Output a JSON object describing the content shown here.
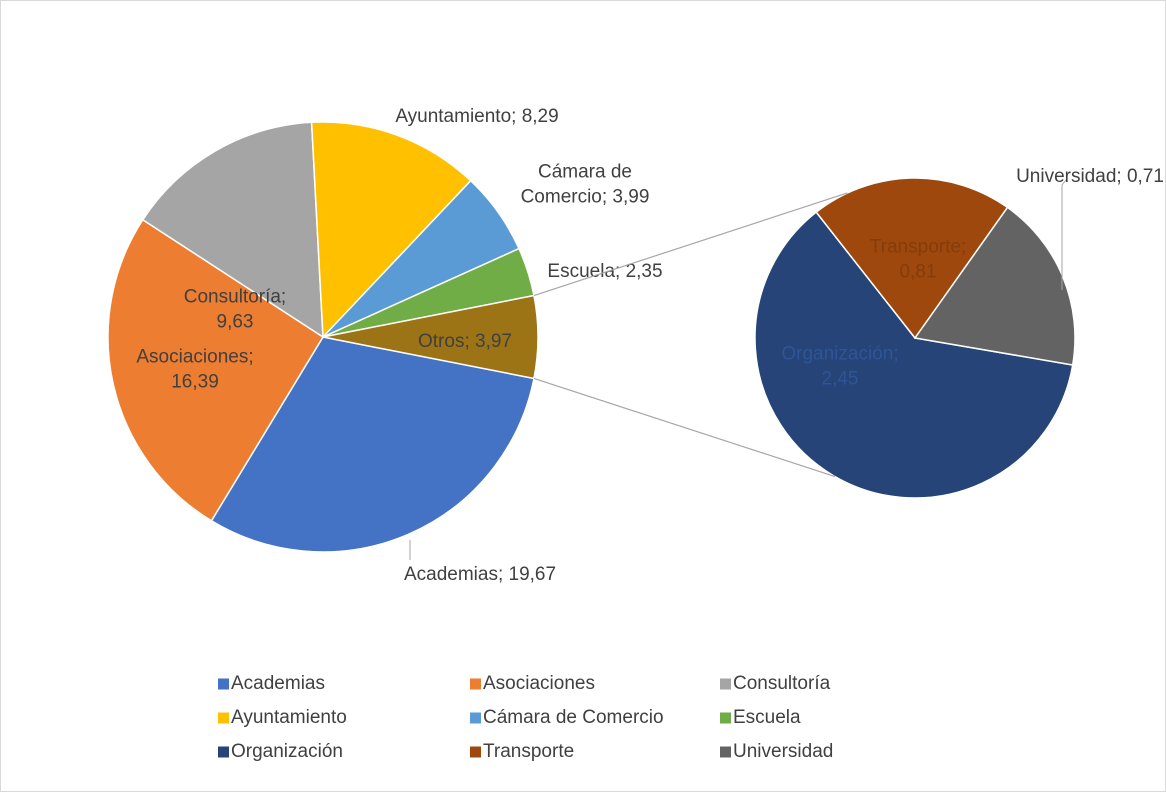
{
  "chart_data": {
    "type": "pie-of-pie",
    "categories": [
      "Academias",
      "Asociaciones",
      "Consultoría",
      "Ayuntamiento",
      "Cámara de Comercio",
      "Escuela",
      "Otros"
    ],
    "values": [
      19.67,
      16.39,
      9.63,
      8.29,
      3.99,
      2.35,
      3.97
    ],
    "value_labels": [
      "Academias; 19,67",
      "Asociaciones;\n16,39",
      "Consultoría;\n9,63",
      "Ayuntamiento; 8,29",
      "Cámara de\nComercio; 3,99",
      "Escuela; 2,35",
      "Otros; 3,97"
    ],
    "colors": [
      "#4472c4",
      "#ed7d31",
      "#a5a5a5",
      "#ffc000",
      "#5b9bd5",
      "#70ad47",
      "#9c7416"
    ],
    "secondary": {
      "categories": [
        "Organización",
        "Transporte",
        "Universidad"
      ],
      "values": [
        2.45,
        0.81,
        0.71
      ],
      "value_labels": [
        "Organización;\n2,45",
        "Transporte;\n0,81",
        "Universidad; 0,71"
      ],
      "colors": [
        "#264478",
        "#9e480e",
        "#636363"
      ]
    },
    "legend": true
  }
}
